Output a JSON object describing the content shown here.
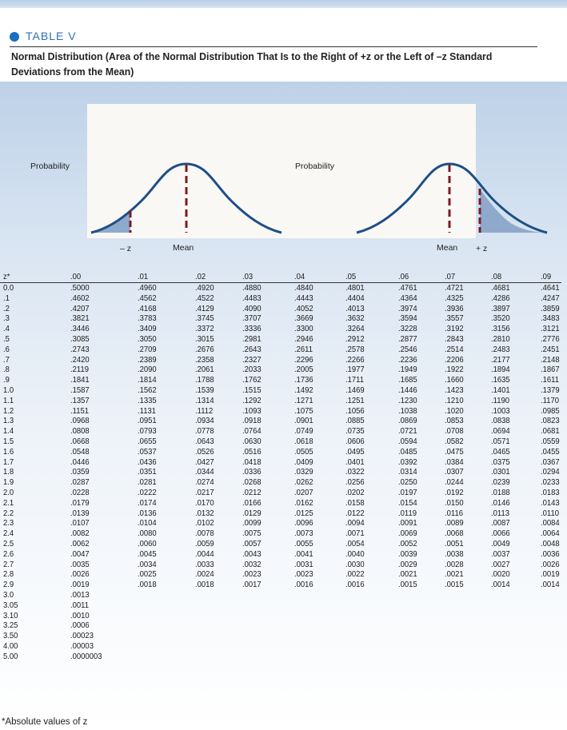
{
  "header": {
    "table_label": "TABLE V",
    "caption": "Normal Distribution (Area of the Normal Distribution That Is to the Right of +z or the Left of –z Standard Deviations from the Mean)"
  },
  "figures": {
    "left": {
      "y_label": "Probability",
      "minus_z": "– z",
      "mean": "Mean"
    },
    "right": {
      "y_label": "Probability",
      "mean": "Mean",
      "plus_z": "+ z"
    }
  },
  "colors": {
    "curve": "#1e4f86",
    "shade": "#8fa9cc",
    "dash": "#7a1c24",
    "dot": "#1b6ec2"
  },
  "table": {
    "columns": [
      "z*",
      ".00",
      ".01",
      ".02",
      ".03",
      ".04",
      ".05",
      ".06",
      ".07",
      ".08",
      ".09"
    ],
    "rows": [
      [
        "0.0",
        ".5000",
        ".4960",
        ".4920",
        ".4880",
        ".4840",
        ".4801",
        ".4761",
        ".4721",
        ".4681",
        ".4641"
      ],
      [
        ".1",
        ".4602",
        ".4562",
        ".4522",
        ".4483",
        ".4443",
        ".4404",
        ".4364",
        ".4325",
        ".4286",
        ".4247"
      ],
      [
        ".2",
        ".4207",
        ".4168",
        ".4129",
        ".4090",
        ".4052",
        ".4013",
        ".3974",
        ".3936",
        ".3897",
        ".3859"
      ],
      [
        ".3",
        ".3821",
        ".3783",
        ".3745",
        ".3707",
        ".3669",
        ".3632",
        ".3594",
        ".3557",
        ".3520",
        ".3483"
      ],
      [
        ".4",
        ".3446",
        ".3409",
        ".3372",
        ".3336",
        ".3300",
        ".3264",
        ".3228",
        ".3192",
        ".3156",
        ".3121"
      ],
      [
        ".5",
        ".3085",
        ".3050",
        ".3015",
        ".2981",
        ".2946",
        ".2912",
        ".2877",
        ".2843",
        ".2810",
        ".2776"
      ],
      [
        ".6",
        ".2743",
        ".2709",
        ".2676",
        ".2643",
        ".2611",
        ".2578",
        ".2546",
        ".2514",
        ".2483",
        ".2451"
      ],
      [
        ".7",
        ".2420",
        ".2389",
        ".2358",
        ".2327",
        ".2296",
        ".2266",
        ".2236",
        ".2206",
        ".2177",
        ".2148"
      ],
      [
        ".8",
        ".2119",
        ".2090",
        ".2061",
        ".2033",
        ".2005",
        ".1977",
        ".1949",
        ".1922",
        ".1894",
        ".1867"
      ],
      [
        ".9",
        ".1841",
        ".1814",
        ".1788",
        ".1762",
        ".1736",
        ".1711",
        ".1685",
        ".1660",
        ".1635",
        ".1611"
      ],
      [
        "1.0",
        ".1587",
        ".1562",
        ".1539",
        ".1515",
        ".1492",
        ".1469",
        ".1446",
        ".1423",
        ".1401",
        ".1379"
      ],
      [
        "1.1",
        ".1357",
        ".1335",
        ".1314",
        ".1292",
        ".1271",
        ".1251",
        ".1230",
        ".1210",
        ".1190",
        ".1170"
      ],
      [
        "1.2",
        ".1151",
        ".1131",
        ".1112",
        ".1093",
        ".1075",
        ".1056",
        ".1038",
        ".1020",
        ".1003",
        ".0985"
      ],
      [
        "1.3",
        ".0968",
        ".0951",
        ".0934",
        ".0918",
        ".0901",
        ".0885",
        ".0869",
        ".0853",
        ".0838",
        ".0823"
      ],
      [
        "1.4",
        ".0808",
        ".0793",
        ".0778",
        ".0764",
        ".0749",
        ".0735",
        ".0721",
        ".0708",
        ".0694",
        ".0681"
      ],
      [
        "1.5",
        ".0668",
        ".0655",
        ".0643",
        ".0630",
        ".0618",
        ".0606",
        ".0594",
        ".0582",
        ".0571",
        ".0559"
      ],
      [
        "1.6",
        ".0548",
        ".0537",
        ".0526",
        ".0516",
        ".0505",
        ".0495",
        ".0485",
        ".0475",
        ".0465",
        ".0455"
      ],
      [
        "1.7",
        ".0446",
        ".0436",
        ".0427",
        ".0418",
        ".0409",
        ".0401",
        ".0392",
        ".0384",
        ".0375",
        ".0367"
      ],
      [
        "1.8",
        ".0359",
        ".0351",
        ".0344",
        ".0336",
        ".0329",
        ".0322",
        ".0314",
        ".0307",
        ".0301",
        ".0294"
      ],
      [
        "1.9",
        ".0287",
        ".0281",
        ".0274",
        ".0268",
        ".0262",
        ".0256",
        ".0250",
        ".0244",
        ".0239",
        ".0233"
      ],
      [
        "2.0",
        ".0228",
        ".0222",
        ".0217",
        ".0212",
        ".0207",
        ".0202",
        ".0197",
        ".0192",
        ".0188",
        ".0183"
      ],
      [
        "2.1",
        ".0179",
        ".0174",
        ".0170",
        ".0166",
        ".0162",
        ".0158",
        ".0154",
        ".0150",
        ".0146",
        ".0143"
      ],
      [
        "2.2",
        ".0139",
        ".0136",
        ".0132",
        ".0129",
        ".0125",
        ".0122",
        ".0119",
        ".0116",
        ".0113",
        ".0110"
      ],
      [
        "2.3",
        ".0107",
        ".0104",
        ".0102",
        ".0099",
        ".0096",
        ".0094",
        ".0091",
        ".0089",
        ".0087",
        ".0084"
      ],
      [
        "2.4",
        ".0082",
        ".0080",
        ".0078",
        ".0075",
        ".0073",
        ".0071",
        ".0069",
        ".0068",
        ".0066",
        ".0064"
      ],
      [
        "2.5",
        ".0062",
        ".0060",
        ".0059",
        ".0057",
        ".0055",
        ".0054",
        ".0052",
        ".0051",
        ".0049",
        ".0048"
      ],
      [
        "2.6",
        ".0047",
        ".0045",
        ".0044",
        ".0043",
        ".0041",
        ".0040",
        ".0039",
        ".0038",
        ".0037",
        ".0036"
      ],
      [
        "2.7",
        ".0035",
        ".0034",
        ".0033",
        ".0032",
        ".0031",
        ".0030",
        ".0029",
        ".0028",
        ".0027",
        ".0026"
      ],
      [
        "2.8",
        ".0026",
        ".0025",
        ".0024",
        ".0023",
        ".0023",
        ".0022",
        ".0021",
        ".0021",
        ".0020",
        ".0019"
      ],
      [
        "2.9",
        ".0019",
        ".0018",
        ".0018",
        ".0017",
        ".0016",
        ".0016",
        ".0015",
        ".0015",
        ".0014",
        ".0014"
      ],
      [
        "3.0",
        ".0013"
      ],
      [
        "3.05",
        ".0011"
      ],
      [
        "3.10",
        ".0010"
      ],
      [
        "3.25",
        ".0006"
      ],
      [
        "3.50",
        ".00023"
      ],
      [
        "4.00",
        ".00003"
      ],
      [
        "5.00",
        ".0000003"
      ]
    ]
  },
  "footnote": "*Absolute values of z"
}
